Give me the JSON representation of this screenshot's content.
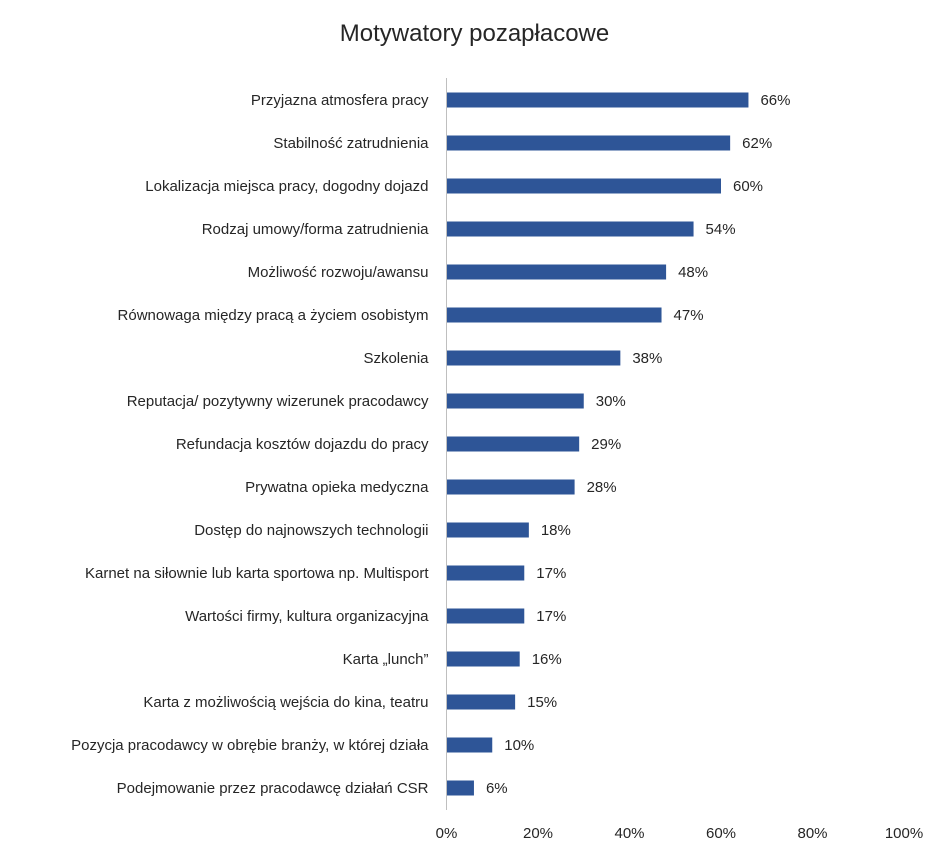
{
  "chart_data": {
    "type": "bar",
    "orientation": "horizontal",
    "title": "Motywatory pozapłacowe",
    "xlabel": "",
    "ylabel": "",
    "categories": [
      "Przyjazna atmosfera pracy",
      "Stabilność zatrudnienia",
      "Lokalizacja miejsca pracy, dogodny dojazd",
      "Rodzaj umowy/forma zatrudnienia",
      "Możliwość rozwoju/awansu",
      "Równowaga między pracą a życiem osobistym",
      "Szkolenia",
      "Reputacja/ pozytywny wizerunek pracodawcy",
      "Refundacja kosztów dojazdu do pracy",
      "Prywatna opieka medyczna",
      "Dostęp do najnowszych technologii",
      "Karnet na siłownie lub karta sportowa np. Multisport",
      "Wartości firmy, kultura organizacyjna",
      "Karta „lunch”",
      "Karta z możliwością wejścia do kina, teatru",
      "Pozycja pracodawcy w obrębie branży, w której działa",
      "Podejmowanie przez pracodawcę działań CSR"
    ],
    "values": [
      66,
      62,
      60,
      54,
      48,
      47,
      38,
      30,
      29,
      28,
      18,
      17,
      17,
      16,
      15,
      10,
      6
    ],
    "data_labels": [
      "66%",
      "62%",
      "60%",
      "54%",
      "48%",
      "47%",
      "38%",
      "30%",
      "29%",
      "28%",
      "18%",
      "17%",
      "17%",
      "16%",
      "15%",
      "10%",
      "6%"
    ],
    "xlim": [
      0,
      100
    ],
    "x_ticks": [
      "0%",
      "20%",
      "40%",
      "60%",
      "80%",
      "100%"
    ],
    "x_tick_values": [
      0,
      20,
      40,
      60,
      80,
      100
    ],
    "grid": false,
    "legend": "none",
    "bar_color": "#2E5597"
  }
}
